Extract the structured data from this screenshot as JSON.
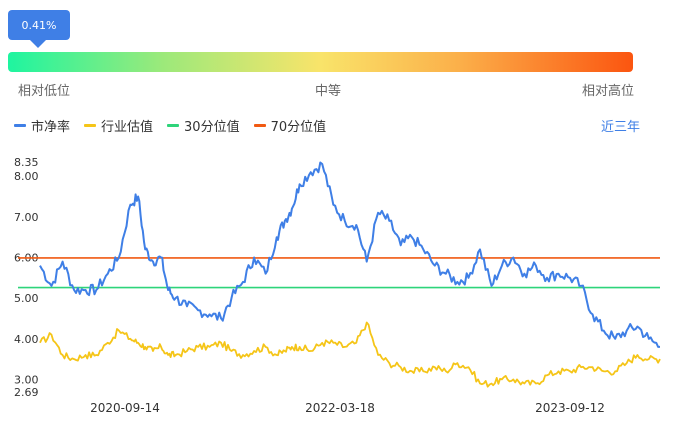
{
  "percentile": {
    "label": "0.41%",
    "value": 0.0041
  },
  "scale_labels": {
    "low": "相对低位",
    "mid": "中等",
    "high": "相对高位"
  },
  "period": "近三年",
  "colors": {
    "pb": "#3f7fe6",
    "industry": "#f5c518",
    "p30": "#2ed47a",
    "p70": "#f15a12",
    "marker": "#3f7fe6"
  },
  "chart_data": {
    "type": "line",
    "title": "",
    "legend": {
      "placement": "top-left"
    },
    "grid": false,
    "y_ticks": [
      "8.35",
      "8.00",
      "7.00",
      "6.00",
      "5.00",
      "4.00",
      "3.00",
      "2.69"
    ],
    "x_ticks": [
      "2020-09-14",
      "2022-03-18",
      "2023-09-12"
    ],
    "ylim": [
      2.69,
      8.35
    ],
    "xlim": [
      "2019-10-10",
      "2024-05-10"
    ],
    "reference_lines": [
      {
        "name": "30分位值",
        "value": 5.26
      },
      {
        "name": "70分位值",
        "value": 5.99
      }
    ],
    "series": [
      {
        "name": "市净率",
        "x": [
          "2019-10-10",
          "2019-11-10",
          "2019-12-10",
          "2020-01-10",
          "2020-02-10",
          "2020-03-10",
          "2020-04-10",
          "2020-05-10",
          "2020-06-10",
          "2020-07-01",
          "2020-07-20",
          "2020-08-10",
          "2020-09-01",
          "2020-09-20",
          "2020-10-10",
          "2020-11-10",
          "2020-12-10",
          "2021-01-10",
          "2021-02-10",
          "2021-03-10",
          "2021-04-10",
          "2021-05-10",
          "2021-06-10",
          "2021-07-10",
          "2021-08-01",
          "2021-08-20",
          "2021-09-10",
          "2021-10-10",
          "2021-11-10",
          "2021-12-10",
          "2022-01-10",
          "2022-02-10",
          "2022-03-10",
          "2022-04-10",
          "2022-05-10",
          "2022-06-10",
          "2022-07-10",
          "2022-08-10",
          "2022-09-10",
          "2022-10-10",
          "2022-11-10",
          "2022-12-10",
          "2023-01-10",
          "2023-02-10",
          "2023-03-10",
          "2023-04-10",
          "2023-05-10",
          "2023-06-10",
          "2023-07-10",
          "2023-08-10",
          "2023-09-10",
          "2023-10-10",
          "2023-11-10",
          "2023-12-10",
          "2024-01-10",
          "2024-02-10",
          "2024-03-10",
          "2024-04-10",
          "2024-05-10"
        ],
        "values": [
          5.8,
          5.3,
          5.9,
          5.2,
          5.2,
          5.2,
          5.6,
          6.0,
          7.3,
          7.5,
          6.2,
          5.9,
          6.0,
          5.2,
          5.0,
          4.8,
          4.7,
          4.6,
          4.5,
          5.0,
          5.4,
          6.0,
          5.6,
          6.5,
          6.9,
          7.2,
          7.8,
          8.1,
          8.3,
          7.3,
          6.9,
          6.8,
          5.9,
          7.1,
          6.9,
          6.3,
          6.5,
          6.2,
          5.8,
          5.6,
          5.4,
          5.5,
          6.2,
          5.3,
          5.8,
          6.0,
          5.6,
          5.8,
          5.5,
          5.6,
          5.5,
          5.3,
          4.6,
          4.2,
          4.0,
          4.2,
          4.3,
          4.0,
          3.8
        ]
      },
      {
        "name": "行业估值",
        "x": [
          "2019-10-10",
          "2019-11-10",
          "2019-12-10",
          "2020-01-10",
          "2020-02-10",
          "2020-03-10",
          "2020-04-10",
          "2020-05-10",
          "2020-06-10",
          "2020-07-01",
          "2020-07-20",
          "2020-08-10",
          "2020-09-01",
          "2020-09-20",
          "2020-10-10",
          "2020-11-10",
          "2020-12-10",
          "2021-01-10",
          "2021-02-10",
          "2021-03-10",
          "2021-04-10",
          "2021-05-10",
          "2021-06-10",
          "2021-07-10",
          "2021-08-01",
          "2021-08-20",
          "2021-09-10",
          "2021-10-10",
          "2021-11-10",
          "2021-12-10",
          "2022-01-10",
          "2022-02-10",
          "2022-03-10",
          "2022-04-10",
          "2022-05-10",
          "2022-06-10",
          "2022-07-10",
          "2022-08-10",
          "2022-09-10",
          "2022-10-10",
          "2022-11-10",
          "2022-12-10",
          "2023-01-10",
          "2023-02-10",
          "2023-03-10",
          "2023-04-10",
          "2023-05-10",
          "2023-06-10",
          "2023-07-10",
          "2023-08-10",
          "2023-09-10",
          "2023-10-10",
          "2023-11-10",
          "2023-12-10",
          "2024-01-10",
          "2024-02-10",
          "2024-03-10",
          "2024-04-10",
          "2024-05-10"
        ],
        "values": [
          3.9,
          4.1,
          3.6,
          3.5,
          3.6,
          3.6,
          3.9,
          4.2,
          4.0,
          3.9,
          3.8,
          3.7,
          3.8,
          3.6,
          3.6,
          3.7,
          3.8,
          3.8,
          3.9,
          3.7,
          3.6,
          3.7,
          3.8,
          3.6,
          3.7,
          3.8,
          3.8,
          3.7,
          3.9,
          3.9,
          3.8,
          3.9,
          4.4,
          3.6,
          3.4,
          3.3,
          3.2,
          3.2,
          3.3,
          3.2,
          3.4,
          3.3,
          2.9,
          2.9,
          3.0,
          3.0,
          2.9,
          2.9,
          3.1,
          3.2,
          3.2,
          3.3,
          3.3,
          3.2,
          3.2,
          3.4,
          3.6,
          3.5,
          3.5
        ]
      },
      {
        "name": "30分位值",
        "values": [
          5.26
        ]
      },
      {
        "name": "70分位值",
        "values": [
          5.99
        ]
      }
    ]
  }
}
